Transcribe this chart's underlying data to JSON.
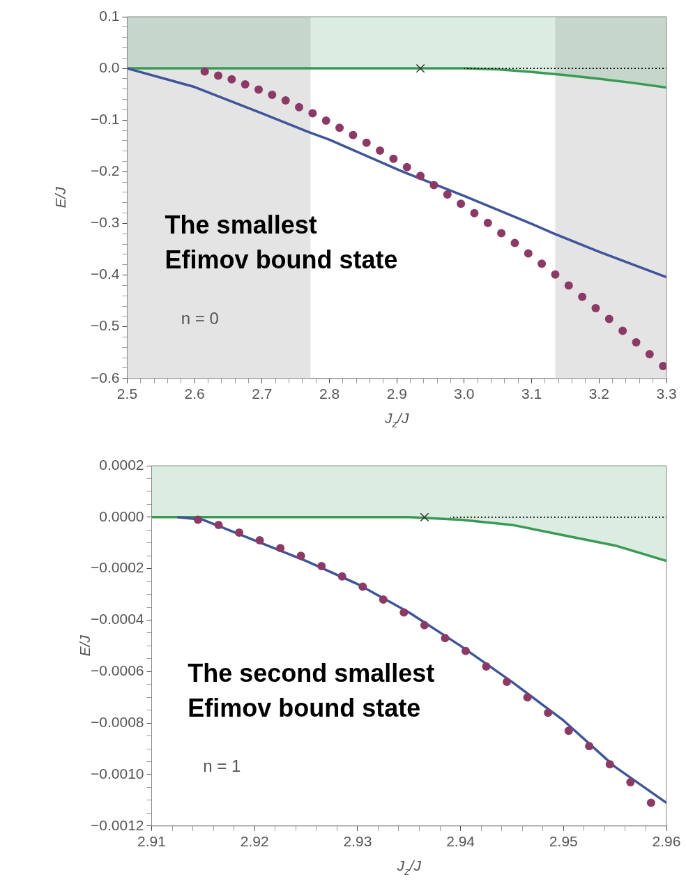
{
  "chart_data": [
    {
      "type": "scatter",
      "xlabel": "J$_{z}$/J",
      "ylabel": "E/J",
      "grid": false,
      "legend": false,
      "xlim": [
        2.5,
        3.3
      ],
      "ylim": [
        -0.6,
        0.1
      ],
      "xticks": [
        2.5,
        {
          "value": 2.52,
          "label": null
        },
        {
          "value": 2.54,
          "label": null
        },
        {
          "value": 2.56,
          "label": null
        },
        {
          "value": 2.58,
          "label": null
        },
        2.6,
        {
          "value": 2.62,
          "label": null
        },
        {
          "value": 2.64,
          "label": null
        },
        {
          "value": 2.66,
          "label": null
        },
        {
          "value": 2.68,
          "label": null
        },
        2.7,
        {
          "value": 2.72,
          "label": null
        },
        {
          "value": 2.74,
          "label": null
        },
        {
          "value": 2.76,
          "label": null
        },
        {
          "value": 2.78,
          "label": null
        },
        2.8,
        {
          "value": 2.82,
          "label": null
        },
        {
          "value": 2.84,
          "label": null
        },
        {
          "value": 2.86,
          "label": null
        },
        {
          "value": 2.88,
          "label": null
        },
        2.9,
        {
          "value": 2.92,
          "label": null
        },
        {
          "value": 2.94,
          "label": null
        },
        {
          "value": 2.96,
          "label": null
        },
        {
          "value": 2.98,
          "label": null
        },
        {
          "value": 3.0,
          "label": "3.0"
        },
        {
          "value": 3.02,
          "label": null
        },
        {
          "value": 3.04,
          "label": null
        },
        {
          "value": 3.06,
          "label": null
        },
        {
          "value": 3.08,
          "label": null
        },
        3.1,
        {
          "value": 3.12,
          "label": null
        },
        {
          "value": 3.14,
          "label": null
        },
        {
          "value": 3.16,
          "label": null
        },
        {
          "value": 3.18,
          "label": null
        },
        3.2,
        {
          "value": 3.22,
          "label": null
        },
        {
          "value": 3.24,
          "label": null
        },
        {
          "value": 3.26,
          "label": null
        },
        {
          "value": 3.28,
          "label": null
        },
        3.3
      ],
      "yticks": [
        0.1,
        {
          "value": 0.08,
          "label": null
        },
        {
          "value": 0.06,
          "label": null
        },
        {
          "value": 0.04,
          "label": null
        },
        {
          "value": 0.02,
          "label": null
        },
        {
          "value": 0,
          "label": "0.0"
        },
        {
          "value": -0.02,
          "label": null
        },
        {
          "value": -0.04,
          "label": null
        },
        {
          "value": -0.06,
          "label": null
        },
        {
          "value": -0.08,
          "label": null
        },
        {
          "value": -0.1,
          "label": "−0.1"
        },
        {
          "value": -0.12,
          "label": null
        },
        {
          "value": -0.14,
          "label": null
        },
        {
          "value": -0.16,
          "label": null
        },
        {
          "value": -0.18,
          "label": null
        },
        {
          "value": -0.2,
          "label": "−0.2"
        },
        {
          "value": -0.22,
          "label": null
        },
        {
          "value": -0.24,
          "label": null
        },
        {
          "value": -0.26,
          "label": null
        },
        {
          "value": -0.28,
          "label": null
        },
        {
          "value": -0.3,
          "label": "−0.3"
        },
        {
          "value": -0.32,
          "label": null
        },
        {
          "value": -0.34,
          "label": null
        },
        {
          "value": -0.36,
          "label": null
        },
        {
          "value": -0.38,
          "label": null
        },
        {
          "value": -0.4,
          "label": "−0.4"
        },
        {
          "value": -0.42,
          "label": null
        },
        {
          "value": -0.44,
          "label": null
        },
        {
          "value": -0.46,
          "label": null
        },
        {
          "value": -0.48,
          "label": null
        },
        {
          "value": -0.5,
          "label": "−0.5"
        },
        {
          "value": -0.52,
          "label": null
        },
        {
          "value": -0.54,
          "label": null
        },
        {
          "value": -0.56,
          "label": null
        },
        {
          "value": -0.58,
          "label": null
        },
        {
          "value": -0.6,
          "label": "−0.6"
        }
      ],
      "bands": [
        {
          "axis": "x",
          "from": 2.5,
          "to": 2.772,
          "color": "#e4e4e4"
        },
        {
          "axis": "x",
          "from": 3.135,
          "to": 3.3,
          "color": "#e4e4e4"
        },
        {
          "axis": "y",
          "from": 0,
          "to": 0.1,
          "color": "#3a9a55"
        }
      ],
      "annotations": [
        "The smallest\nEfimov bound state",
        "n = 0"
      ],
      "series": [
        {
          "type": "area",
          "color": "#3a9a55",
          "x": [
            2.5,
            2.6,
            2.7,
            2.8,
            2.9,
            3.0,
            3.05,
            3.1,
            3.15,
            3.2,
            3.25,
            3.3
          ],
          "values": [
            0,
            0,
            0,
            0,
            0,
            0,
            -0.002,
            -0.007,
            -0.013,
            -0.02,
            -0.028,
            -0.037
          ]
        },
        {
          "type": "line",
          "color": "#000000",
          "line_style": "dotted",
          "x": [
            3.0,
            3.3
          ],
          "values": [
            0,
            0
          ]
        },
        {
          "type": "line",
          "color": "#3f5597",
          "x": [
            2.5,
            2.6,
            2.7,
            2.769,
            2.8,
            2.9,
            2.911,
            3.0,
            3.1,
            3.132,
            3.2,
            3.3
          ],
          "values": [
            0,
            -0.036,
            -0.087,
            -0.123,
            -0.138,
            -0.195,
            -0.201,
            -0.247,
            -0.301,
            -0.319,
            -0.355,
            -0.404
          ]
        },
        {
          "type": "scatter",
          "marker": "circle",
          "color": "#8b3a66",
          "x": [
            2.615,
            2.635,
            2.655,
            2.675,
            2.695,
            2.715,
            2.735,
            2.755,
            2.775,
            2.795,
            2.815,
            2.835,
            2.855,
            2.875,
            2.895,
            2.915,
            2.935,
            2.955,
            2.975,
            2.995,
            3.015,
            3.035,
            3.055,
            3.075,
            3.095,
            3.115,
            3.135,
            3.155,
            3.175,
            3.195,
            3.215,
            3.235,
            3.255,
            3.275,
            3.295
          ],
          "values": [
            -0.006,
            -0.014,
            -0.021,
            -0.031,
            -0.041,
            -0.051,
            -0.062,
            -0.075,
            -0.087,
            -0.101,
            -0.115,
            -0.129,
            -0.144,
            -0.159,
            -0.175,
            -0.191,
            -0.208,
            -0.226,
            -0.244,
            -0.262,
            -0.28,
            -0.299,
            -0.319,
            -0.338,
            -0.358,
            -0.378,
            -0.399,
            -0.42,
            -0.442,
            -0.464,
            -0.485,
            -0.508,
            -0.53,
            -0.553,
            -0.576
          ]
        },
        {
          "type": "scatter",
          "marker": "cross",
          "color": "#333333",
          "x": [
            2.935
          ],
          "values": [
            0
          ]
        }
      ]
    },
    {
      "type": "scatter",
      "xlabel": "J$_{z}$/J",
      "ylabel": "E/J",
      "grid": false,
      "legend": false,
      "xlim": [
        2.91,
        2.96
      ],
      "ylim": [
        -0.0012,
        0.0002
      ],
      "xticks": [
        2.91,
        {
          "value": 2.912,
          "label": null
        },
        {
          "value": 2.914,
          "label": null
        },
        {
          "value": 2.916,
          "label": null
        },
        {
          "value": 2.918,
          "label": null
        },
        2.92,
        {
          "value": 2.922,
          "label": null
        },
        {
          "value": 2.924,
          "label": null
        },
        {
          "value": 2.926,
          "label": null
        },
        {
          "value": 2.928,
          "label": null
        },
        2.93,
        {
          "value": 2.932,
          "label": null
        },
        {
          "value": 2.934,
          "label": null
        },
        {
          "value": 2.936,
          "label": null
        },
        {
          "value": 2.938,
          "label": null
        },
        2.94,
        {
          "value": 2.942,
          "label": null
        },
        {
          "value": 2.944,
          "label": null
        },
        {
          "value": 2.946,
          "label": null
        },
        {
          "value": 2.948,
          "label": null
        },
        2.95,
        {
          "value": 2.952,
          "label": null
        },
        {
          "value": 2.954,
          "label": null
        },
        {
          "value": 2.956,
          "label": null
        },
        {
          "value": 2.958,
          "label": null
        },
        2.96
      ],
      "yticks": [
        0.0002,
        {
          "value": 0.00015,
          "label": null
        },
        {
          "value": 0.0001,
          "label": null
        },
        {
          "value": 5e-05,
          "label": null
        },
        {
          "value": 0,
          "label": "0.0000"
        },
        {
          "value": -5e-05,
          "label": null
        },
        {
          "value": -0.0001,
          "label": null
        },
        {
          "value": -0.00015,
          "label": null
        },
        {
          "value": -0.0002,
          "label": "−0.0002"
        },
        {
          "value": -0.00025,
          "label": null
        },
        {
          "value": -0.0003,
          "label": null
        },
        {
          "value": -0.00035,
          "label": null
        },
        {
          "value": -0.0004,
          "label": "−0.0004"
        },
        {
          "value": -0.00045,
          "label": null
        },
        {
          "value": -0.0005,
          "label": null
        },
        {
          "value": -0.00055,
          "label": null
        },
        {
          "value": -0.0006,
          "label": "−0.0006"
        },
        {
          "value": -0.00065,
          "label": null
        },
        {
          "value": -0.0007,
          "label": null
        },
        {
          "value": -0.00075,
          "label": null
        },
        {
          "value": -0.0008,
          "label": "−0.0008"
        },
        {
          "value": -0.00085,
          "label": null
        },
        {
          "value": -0.0009,
          "label": null
        },
        {
          "value": -0.00095,
          "label": null
        },
        {
          "value": -0.001,
          "label": "−0.0010"
        },
        {
          "value": -0.00105,
          "label": null
        },
        {
          "value": -0.0011,
          "label": null
        },
        {
          "value": -0.00115,
          "label": null
        },
        {
          "value": -0.0012,
          "label": "−0.0012"
        }
      ],
      "bands": [
        {
          "axis": "y",
          "from": 0,
          "to": 0.0002,
          "color": "#3a9a55"
        }
      ],
      "annotations": [
        "The second smallest\nEfimov bound state",
        "n = 1"
      ],
      "series": [
        {
          "type": "area",
          "color": "#3a9a55",
          "x": [
            2.91,
            2.92,
            2.93,
            2.935,
            2.94,
            2.945,
            2.95,
            2.955,
            2.96
          ],
          "values": [
            0,
            0,
            0,
            0,
            -1e-05,
            -3e-05,
            -7e-05,
            -0.00011,
            -0.00017
          ]
        },
        {
          "type": "line",
          "color": "#000000",
          "line_style": "dotted",
          "x": [
            2.939,
            2.96
          ],
          "values": [
            0,
            0
          ]
        },
        {
          "type": "line",
          "color": "#3f5597",
          "x": [
            2.9125,
            2.915,
            2.92,
            2.925,
            2.93,
            2.935,
            2.94,
            2.945,
            2.95,
            2.955,
            2.96
          ],
          "values": [
            0,
            -1e-05,
            -9e-05,
            -0.00017,
            -0.00026,
            -0.00037,
            -0.0005,
            -0.00064,
            -0.00079,
            -0.00097,
            -0.00111
          ]
        },
        {
          "type": "scatter",
          "marker": "circle",
          "color": "#8b3a66",
          "x": [
            2.9145,
            2.9165,
            2.9185,
            2.9205,
            2.9225,
            2.9245,
            2.9265,
            2.9285,
            2.9305,
            2.9325,
            2.9345,
            2.9365,
            2.9385,
            2.9405,
            2.9425,
            2.9445,
            2.9465,
            2.9485,
            2.9505,
            2.9525,
            2.9545,
            2.9565,
            2.9585
          ],
          "values": [
            -1e-05,
            -3e-05,
            -6e-05,
            -9e-05,
            -0.00012,
            -0.00015,
            -0.00019,
            -0.00023,
            -0.00027,
            -0.00032,
            -0.00037,
            -0.00042,
            -0.00047,
            -0.00052,
            -0.00058,
            -0.00064,
            -0.0007,
            -0.00076,
            -0.00083,
            -0.00089,
            -0.00096,
            -0.00103,
            -0.00111
          ]
        },
        {
          "type": "scatter",
          "marker": "cross",
          "color": "#333333",
          "x": [
            2.9365
          ],
          "values": [
            0
          ]
        }
      ]
    }
  ]
}
